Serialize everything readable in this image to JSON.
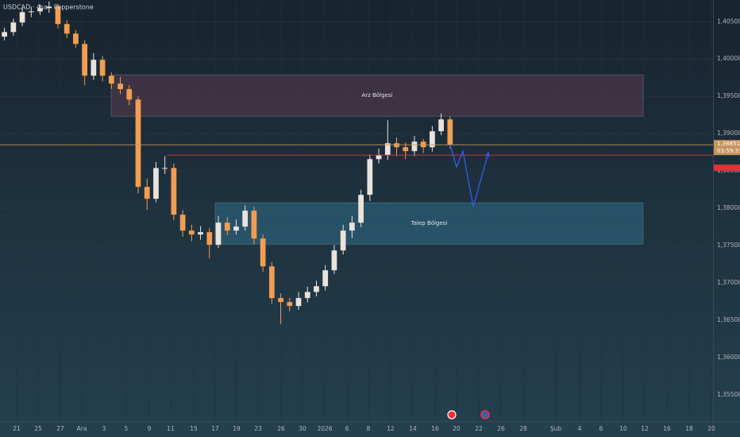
{
  "chart_data": {
    "type": "candlestick",
    "title": "USDCAD · 4sa · Pepperstone",
    "up_color": "#e9e3dc",
    "down_color": "#f29d52",
    "grid": true,
    "ylim": [
      1.3515,
      1.4079
    ],
    "yticks": [
      {
        "value": 1.405,
        "label": "1,40500"
      },
      {
        "value": 1.4,
        "label": "1,40000"
      },
      {
        "value": 1.395,
        "label": "1,39500"
      },
      {
        "value": 1.39,
        "label": "1,39000"
      },
      {
        "value": 1.385,
        "label": "1,38500"
      },
      {
        "value": 1.38,
        "label": "1,38000"
      },
      {
        "value": 1.375,
        "label": "1,37500"
      },
      {
        "value": 1.37,
        "label": "1,37000"
      },
      {
        "value": 1.365,
        "label": "1,36500"
      },
      {
        "value": 1.36,
        "label": "1,36000"
      },
      {
        "value": 1.355,
        "label": "1,35500"
      }
    ],
    "xlim": [
      0,
      80
    ],
    "xticks": [
      {
        "value": 1.87,
        "label": "21"
      },
      {
        "value": 4.28,
        "label": "25"
      },
      {
        "value": 6.77,
        "label": "27"
      },
      {
        "value": 9.18,
        "label": "Ara"
      },
      {
        "value": 11.67,
        "label": "3"
      },
      {
        "value": 14.16,
        "label": "5"
      },
      {
        "value": 16.75,
        "label": "9"
      },
      {
        "value": 19.15,
        "label": "11"
      },
      {
        "value": 21.74,
        "label": "15"
      },
      {
        "value": 24.14,
        "label": "17"
      },
      {
        "value": 26.55,
        "label": "19"
      },
      {
        "value": 28.95,
        "label": "23"
      },
      {
        "value": 31.54,
        "label": "26"
      },
      {
        "value": 33.94,
        "label": "30"
      },
      {
        "value": 36.44,
        "label": "2026"
      },
      {
        "value": 38.93,
        "label": "6"
      },
      {
        "value": 41.34,
        "label": "8"
      },
      {
        "value": 43.83,
        "label": "12"
      },
      {
        "value": 46.33,
        "label": "14"
      },
      {
        "value": 48.82,
        "label": "16"
      },
      {
        "value": 51.22,
        "label": "20"
      },
      {
        "value": 53.72,
        "label": "22"
      },
      {
        "value": 56.21,
        "label": "26"
      },
      {
        "value": 58.71,
        "label": "28"
      },
      {
        "value": 62.36,
        "label": "Şub"
      },
      {
        "value": 65.03,
        "label": "4"
      },
      {
        "value": 67.44,
        "label": "6"
      },
      {
        "value": 69.93,
        "label": "10"
      },
      {
        "value": 72.34,
        "label": "12"
      },
      {
        "value": 74.83,
        "label": "16"
      },
      {
        "value": 77.33,
        "label": "18"
      },
      {
        "value": 79.82,
        "label": "20"
      }
    ],
    "x": [
      0.5,
      1.5,
      2.5,
      3.5,
      4.5,
      5.5,
      6.5,
      7.5,
      8.5,
      9.5,
      10.5,
      11.5,
      12.5,
      13.5,
      14.5,
      15.5,
      16.5,
      17.5,
      18.5,
      19.5,
      20.5,
      21.5,
      22.5,
      23.5,
      24.5,
      25.5,
      26.5,
      27.5,
      28.5,
      29.5,
      30.5,
      31.5,
      32.5,
      33.5,
      34.5,
      35.5,
      36.5,
      37.5,
      38.5,
      39.5,
      40.5,
      41.5,
      42.5,
      43.5,
      44.5,
      45.5,
      46.5,
      47.5,
      48.5,
      49.5,
      50.5
    ],
    "open": [
      1.403,
      1.40361,
      1.40489,
      1.40627,
      1.40638,
      1.40681,
      1.40702,
      1.40468,
      1.4034,
      1.40202,
      1.39776,
      1.39989,
      1.39776,
      1.3967,
      1.39596,
      1.39457,
      1.38287,
      1.38128,
      1.3854,
      1.3854,
      1.37915,
      1.37702,
      1.37649,
      1.37681,
      1.37511,
      1.37808,
      1.37702,
      1.37755,
      1.37968,
      1.37596,
      1.37223,
      1.36798,
      1.36745,
      1.36692,
      1.36798,
      1.3688,
      1.36957,
      1.3717,
      1.37436,
      1.37702,
      1.37808,
      1.38181,
      1.38659,
      1.38713,
      1.38872,
      1.38819,
      1.38766,
      1.38893,
      1.38819,
      1.39032,
      1.39191
    ],
    "high": [
      1.4042,
      1.4054,
      1.4068,
      1.407,
      1.4073,
      1.4077,
      1.4074,
      1.4052,
      1.4039,
      1.4025,
      1.4008,
      1.4004,
      1.3982,
      1.3976,
      1.3965,
      1.395,
      1.384,
      1.3862,
      1.387,
      1.386,
      1.3798,
      1.3778,
      1.3776,
      1.3774,
      1.379,
      1.3788,
      1.3785,
      1.3804,
      1.3802,
      1.3765,
      1.3728,
      1.3686,
      1.368,
      1.3688,
      1.3695,
      1.3703,
      1.3724,
      1.3751,
      1.3778,
      1.379,
      1.3825,
      1.3872,
      1.388,
      1.3918,
      1.3895,
      1.3888,
      1.3897,
      1.3893,
      1.391,
      1.3927,
      1.3923
    ],
    "low": [
      1.4025,
      1.4031,
      1.4044,
      1.4056,
      1.4059,
      1.4062,
      1.4041,
      1.4028,
      1.4015,
      1.3965,
      1.3972,
      1.397,
      1.396,
      1.3953,
      1.3938,
      1.382,
      1.3798,
      1.3808,
      1.3846,
      1.3784,
      1.3762,
      1.3756,
      1.3758,
      1.3733,
      1.3747,
      1.3764,
      1.3765,
      1.377,
      1.3752,
      1.3715,
      1.3672,
      1.3645,
      1.3662,
      1.3664,
      1.3674,
      1.3682,
      1.369,
      1.3712,
      1.3738,
      1.376,
      1.3775,
      1.381,
      1.386,
      1.3865,
      1.387,
      1.3866,
      1.387,
      1.3874,
      1.3876,
      1.3898,
      1.388
    ],
    "close": [
      1.40361,
      1.40489,
      1.40627,
      1.40638,
      1.40681,
      1.40702,
      1.40468,
      1.4034,
      1.40202,
      1.39776,
      1.39989,
      1.39776,
      1.3967,
      1.39596,
      1.39457,
      1.38287,
      1.38128,
      1.3854,
      1.3854,
      1.37915,
      1.37702,
      1.37649,
      1.37681,
      1.37511,
      1.37808,
      1.37702,
      1.37755,
      1.37968,
      1.37596,
      1.37223,
      1.36798,
      1.36745,
      1.36692,
      1.36798,
      1.3688,
      1.36957,
      1.3717,
      1.37436,
      1.37702,
      1.37808,
      1.38181,
      1.38659,
      1.38713,
      1.38872,
      1.38819,
      1.38766,
      1.38893,
      1.38819,
      1.39032,
      1.39191,
      1.38851
    ],
    "zones": [
      {
        "label": "Arz Bölgesi",
        "x0": 12.47,
        "x1": 72.16,
        "y0": 1.39787,
        "y1": 1.39234,
        "color": "#5a3a4c"
      },
      {
        "label": "Talep Bölgesi",
        "x0": 24.14,
        "x1": 72.16,
        "y0": 1.38074,
        "y1": 1.37521,
        "color": "#2f6c86"
      }
    ],
    "levels": [
      {
        "x0": 0,
        "value": 1.38851,
        "color": "#c8955f",
        "label": "1,38851",
        "countdown": "03:59:37"
      },
      {
        "x0": 18.71,
        "value": 1.38713,
        "color": "#e0323a"
      }
    ],
    "projection": {
      "color": "#2f5fe0",
      "x": [
        50.5,
        51.22,
        51.94,
        53.1,
        54.79
      ],
      "y": [
        1.38851,
        1.38553,
        1.38766,
        1.38021,
        1.38745
      ]
    }
  }
}
